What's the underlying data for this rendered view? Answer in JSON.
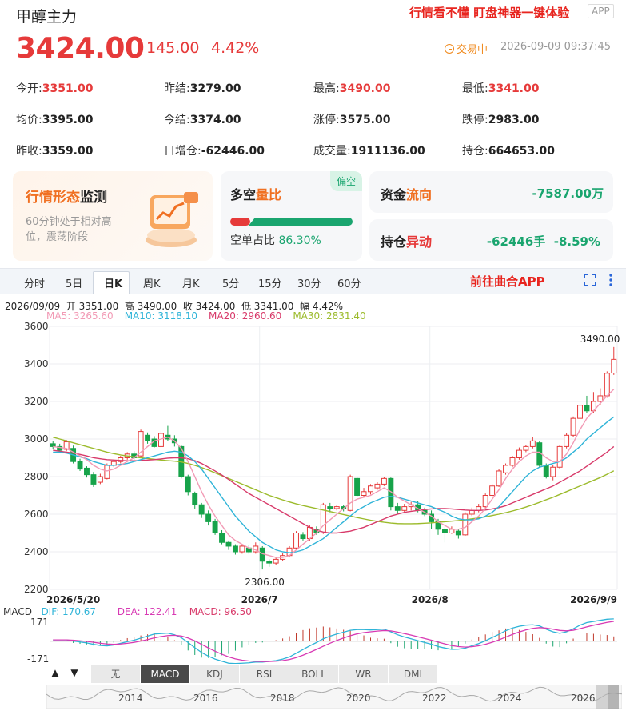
{
  "header": {
    "title": "甲醇主力",
    "promo": "行情看不懂 盯盘神器一键体验",
    "app_badge": "APP",
    "price": "3424.00",
    "change": "145.00",
    "pct": "4.42%",
    "status": "交易中",
    "time": "2026-09-09 09:37:45"
  },
  "stats": [
    {
      "label": "今开:",
      "value": "3351.00",
      "color": "#e63a3a"
    },
    {
      "label": "昨结:",
      "value": "3279.00",
      "color": "#222222"
    },
    {
      "label": "最高:",
      "value": "3490.00",
      "color": "#e63a3a"
    },
    {
      "label": "最低:",
      "value": "3341.00",
      "color": "#e63a3a"
    },
    {
      "label": "均价:",
      "value": "3395.00",
      "color": "#222222"
    },
    {
      "label": "今结:",
      "value": "3374.00",
      "color": "#222222"
    },
    {
      "label": "涨停:",
      "value": "3575.00",
      "color": "#222222"
    },
    {
      "label": "跌停:",
      "value": "2983.00",
      "color": "#222222"
    },
    {
      "label": "昨收:",
      "value": "3359.00",
      "color": "#222222"
    },
    {
      "label": "日增仓:",
      "value": "-62446.00",
      "color": "#222222"
    },
    {
      "label": "成交量:",
      "value": "1911136.00",
      "color": "#222222"
    },
    {
      "label": "持仓:",
      "value": "664653.00",
      "color": "#222222"
    }
  ],
  "cards": {
    "monitor_title_a": "行情形态",
    "monitor_title_b": "监测",
    "monitor_desc": "60分钟处于相对高位，震荡阶段",
    "ls_title_a": "多空",
    "ls_title_b": "量比",
    "ls_badge": "偏空",
    "ls_label": "空单占比",
    "ls_value": "86.30%",
    "ls_fraction": 0.863,
    "flow_title_a": "资金",
    "flow_title_b": "流向",
    "flow_value": "-7587.00万",
    "pos_title_a": "持仓",
    "pos_title_b": "异动",
    "pos_value": "-62446手",
    "pos_pct": "-8.59%"
  },
  "tabs": [
    "分时",
    "5日",
    "日K",
    "周K",
    "月K",
    "5分",
    "15分",
    "30分",
    "60分"
  ],
  "active_tab": "日K",
  "goto_app": "前往曲合APP",
  "info_line": "2026/09/09  开 3351.00  高 3490.00  收 3424.00  低 3341.00  幅 4.42%",
  "ma_labels": [
    {
      "text": "MA5: 3265.60",
      "color": "#f29ab5"
    },
    {
      "text": "MA10: 3118.10",
      "color": "#2fb4d8"
    },
    {
      "text": "MA20: 2960.60",
      "color": "#d83a6a"
    },
    {
      "text": "MA30: 2831.40",
      "color": "#9cbb2c"
    }
  ],
  "macd_labels": {
    "name": "MACD",
    "dif": "DIF: 170.67",
    "dea": "DEA: 122.41",
    "macd": "MACD: 96.50",
    "top": "171",
    "bottom": "-171"
  },
  "indicator_tabs": [
    "无",
    "MACD",
    "KDJ",
    "RSI",
    "BOLL",
    "WR",
    "DMI"
  ],
  "active_indicator": "MACD",
  "timeline_years": [
    "2014",
    "2016",
    "2018",
    "2020",
    "2022",
    "2024",
    "2026"
  ],
  "chart_data": {
    "type": "candlestick",
    "y_ticks": [
      "3600",
      "3400",
      "3200",
      "3000",
      "2800",
      "2600",
      "2400",
      "2200"
    ],
    "ylim": [
      2200,
      3600
    ],
    "x_labels": [
      "2026/5/20",
      "2026/7",
      "2026/8",
      "2026/9/9"
    ],
    "annotations": {
      "high": "3490.00",
      "low": "2306.00"
    },
    "candles": [
      [
        2975,
        2960,
        2990,
        2945
      ],
      [
        2960,
        2940,
        2975,
        2925
      ],
      [
        2945,
        2985,
        2995,
        2935
      ],
      [
        2950,
        2880,
        2965,
        2870
      ],
      [
        2880,
        2840,
        2895,
        2830
      ],
      [
        2845,
        2810,
        2855,
        2795
      ],
      [
        2810,
        2760,
        2825,
        2745
      ],
      [
        2770,
        2800,
        2815,
        2760
      ],
      [
        2790,
        2860,
        2870,
        2785
      ],
      [
        2860,
        2880,
        2890,
        2850
      ],
      [
        2880,
        2900,
        2910,
        2870
      ],
      [
        2900,
        2920,
        2930,
        2890
      ],
      [
        2920,
        2900,
        2935,
        2890
      ],
      [
        2910,
        3040,
        3050,
        2905
      ],
      [
        3020,
        2990,
        3035,
        2975
      ],
      [
        3000,
        2960,
        3015,
        2955
      ],
      [
        2960,
        3030,
        3045,
        2955
      ],
      [
        3020,
        3000,
        3070,
        2990
      ],
      [
        3000,
        2980,
        3020,
        2960
      ],
      [
        2960,
        2800,
        2970,
        2790
      ],
      [
        2800,
        2720,
        2810,
        2700
      ],
      [
        2710,
        2650,
        2720,
        2630
      ],
      [
        2650,
        2600,
        2660,
        2580
      ],
      [
        2600,
        2560,
        2620,
        2540
      ],
      [
        2560,
        2500,
        2575,
        2490
      ],
      [
        2500,
        2450,
        2515,
        2440
      ],
      [
        2450,
        2430,
        2460,
        2410
      ],
      [
        2430,
        2400,
        2440,
        2385
      ],
      [
        2400,
        2430,
        2440,
        2390
      ],
      [
        2420,
        2400,
        2435,
        2390
      ],
      [
        2400,
        2430,
        2450,
        2390
      ],
      [
        2420,
        2350,
        2430,
        2306
      ],
      [
        2350,
        2340,
        2360,
        2320
      ],
      [
        2340,
        2360,
        2370,
        2330
      ],
      [
        2360,
        2380,
        2395,
        2350
      ],
      [
        2380,
        2420,
        2430,
        2370
      ],
      [
        2420,
        2500,
        2510,
        2410
      ],
      [
        2490,
        2470,
        2505,
        2460
      ],
      [
        2470,
        2530,
        2540,
        2460
      ],
      [
        2520,
        2500,
        2535,
        2490
      ],
      [
        2500,
        2650,
        2660,
        2495
      ],
      [
        2640,
        2630,
        2660,
        2610
      ],
      [
        2630,
        2640,
        2650,
        2620
      ],
      [
        2640,
        2630,
        2650,
        2615
      ],
      [
        2620,
        2800,
        2810,
        2615
      ],
      [
        2790,
        2700,
        2800,
        2690
      ],
      [
        2700,
        2720,
        2740,
        2690
      ],
      [
        2720,
        2750,
        2760,
        2705
      ],
      [
        2740,
        2760,
        2770,
        2730
      ],
      [
        2760,
        2790,
        2800,
        2750
      ],
      [
        2790,
        2640,
        2795,
        2620
      ],
      [
        2640,
        2620,
        2660,
        2600
      ],
      [
        2620,
        2640,
        2655,
        2610
      ],
      [
        2640,
        2650,
        2665,
        2620
      ],
      [
        2650,
        2620,
        2670,
        2610
      ],
      [
        2620,
        2600,
        2635,
        2590
      ],
      [
        2600,
        2560,
        2620,
        2520
      ],
      [
        2560,
        2520,
        2575,
        2490
      ],
      [
        2520,
        2500,
        2535,
        2450
      ],
      [
        2500,
        2520,
        2535,
        2495
      ],
      [
        2510,
        2490,
        2520,
        2470
      ],
      [
        2490,
        2600,
        2610,
        2485
      ],
      [
        2600,
        2620,
        2635,
        2590
      ],
      [
        2620,
        2640,
        2655,
        2610
      ],
      [
        2640,
        2700,
        2710,
        2630
      ],
      [
        2700,
        2750,
        2760,
        2690
      ],
      [
        2750,
        2830,
        2840,
        2745
      ],
      [
        2820,
        2860,
        2870,
        2810
      ],
      [
        2860,
        2900,
        2910,
        2850
      ],
      [
        2900,
        2940,
        2955,
        2890
      ],
      [
        2940,
        2960,
        2970,
        2930
      ],
      [
        2960,
        2990,
        3010,
        2950
      ],
      [
        2980,
        2860,
        2990,
        2850
      ],
      [
        2860,
        2800,
        2870,
        2790
      ],
      [
        2800,
        2850,
        2860,
        2780
      ],
      [
        2850,
        2960,
        2970,
        2840
      ],
      [
        2960,
        3020,
        3030,
        2950
      ],
      [
        3020,
        3110,
        3120,
        3010
      ],
      [
        3110,
        3180,
        3190,
        3100
      ],
      [
        3180,
        3150,
        3230,
        3140
      ],
      [
        3150,
        3200,
        3250,
        3140
      ],
      [
        3200,
        3230,
        3270,
        3180
      ],
      [
        3230,
        3350,
        3360,
        3220
      ],
      [
        3351,
        3424,
        3490,
        3341
      ]
    ],
    "ma5": [
      2960,
      2955,
      2950,
      2930,
      2910,
      2890,
      2860,
      2840,
      2830,
      2840,
      2860,
      2880,
      2900,
      2930,
      2960,
      2990,
      3000,
      3010,
      2990,
      2950,
      2880,
      2800,
      2720,
      2650,
      2590,
      2540,
      2490,
      2460,
      2440,
      2420,
      2410,
      2390,
      2380,
      2370,
      2370,
      2380,
      2410,
      2440,
      2470,
      2500,
      2540,
      2570,
      2600,
      2630,
      2660,
      2680,
      2690,
      2700,
      2720,
      2740,
      2720,
      2690,
      2670,
      2650,
      2630,
      2610,
      2590,
      2560,
      2540,
      2520,
      2520,
      2530,
      2560,
      2590,
      2630,
      2680,
      2730,
      2790,
      2840,
      2880,
      2910,
      2930,
      2930,
      2900,
      2880,
      2880,
      2920,
      2980,
      3050,
      3110,
      3150,
      3190,
      3230,
      3265
    ],
    "ma10": [
      2930,
      2930,
      2925,
      2915,
      2905,
      2895,
      2880,
      2870,
      2860,
      2860,
      2865,
      2870,
      2880,
      2890,
      2900,
      2910,
      2920,
      2930,
      2935,
      2930,
      2910,
      2880,
      2840,
      2790,
      2740,
      2690,
      2640,
      2590,
      2550,
      2510,
      2480,
      2450,
      2430,
      2410,
      2400,
      2395,
      2400,
      2410,
      2430,
      2450,
      2470,
      2500,
      2530,
      2560,
      2590,
      2620,
      2640,
      2660,
      2675,
      2690,
      2695,
      2690,
      2680,
      2670,
      2660,
      2650,
      2640,
      2625,
      2610,
      2590,
      2575,
      2570,
      2570,
      2575,
      2590,
      2610,
      2640,
      2680,
      2720,
      2760,
      2800,
      2830,
      2850,
      2860,
      2870,
      2880,
      2900,
      2930,
      2960,
      3000,
      3030,
      3060,
      3090,
      3118
    ],
    "ma20": [
      2940,
      2935,
      2930,
      2925,
      2918,
      2910,
      2900,
      2895,
      2890,
      2888,
      2886,
      2884,
      2884,
      2886,
      2888,
      2890,
      2894,
      2898,
      2900,
      2900,
      2895,
      2885,
      2870,
      2850,
      2830,
      2808,
      2785,
      2760,
      2735,
      2710,
      2690,
      2670,
      2650,
      2630,
      2610,
      2590,
      2570,
      2550,
      2530,
      2515,
      2505,
      2500,
      2500,
      2505,
      2510,
      2520,
      2530,
      2545,
      2560,
      2575,
      2590,
      2600,
      2610,
      2615,
      2620,
      2625,
      2628,
      2630,
      2630,
      2628,
      2625,
      2622,
      2620,
      2620,
      2622,
      2628,
      2635,
      2645,
      2660,
      2675,
      2690,
      2705,
      2720,
      2735,
      2750,
      2770,
      2790,
      2810,
      2830,
      2855,
      2880,
      2905,
      2930,
      2960
    ],
    "ma30": [
      3010,
      3000,
      2990,
      2980,
      2970,
      2960,
      2950,
      2940,
      2930,
      2922,
      2915,
      2910,
      2905,
      2900,
      2896,
      2892,
      2888,
      2885,
      2882,
      2878,
      2870,
      2860,
      2848,
      2835,
      2820,
      2805,
      2790,
      2775,
      2760,
      2745,
      2730,
      2715,
      2700,
      2688,
      2676,
      2665,
      2655,
      2646,
      2638,
      2630,
      2622,
      2614,
      2606,
      2598,
      2590,
      2582,
      2575,
      2568,
      2562,
      2557,
      2553,
      2550,
      2549,
      2549,
      2550,
      2552,
      2554,
      2557,
      2560,
      2563,
      2566,
      2570,
      2575,
      2580,
      2586,
      2593,
      2600,
      2608,
      2617,
      2627,
      2638,
      2650,
      2663,
      2677,
      2690,
      2705,
      2720,
      2735,
      2750,
      2765,
      2780,
      2795,
      2812,
      2831
    ]
  }
}
